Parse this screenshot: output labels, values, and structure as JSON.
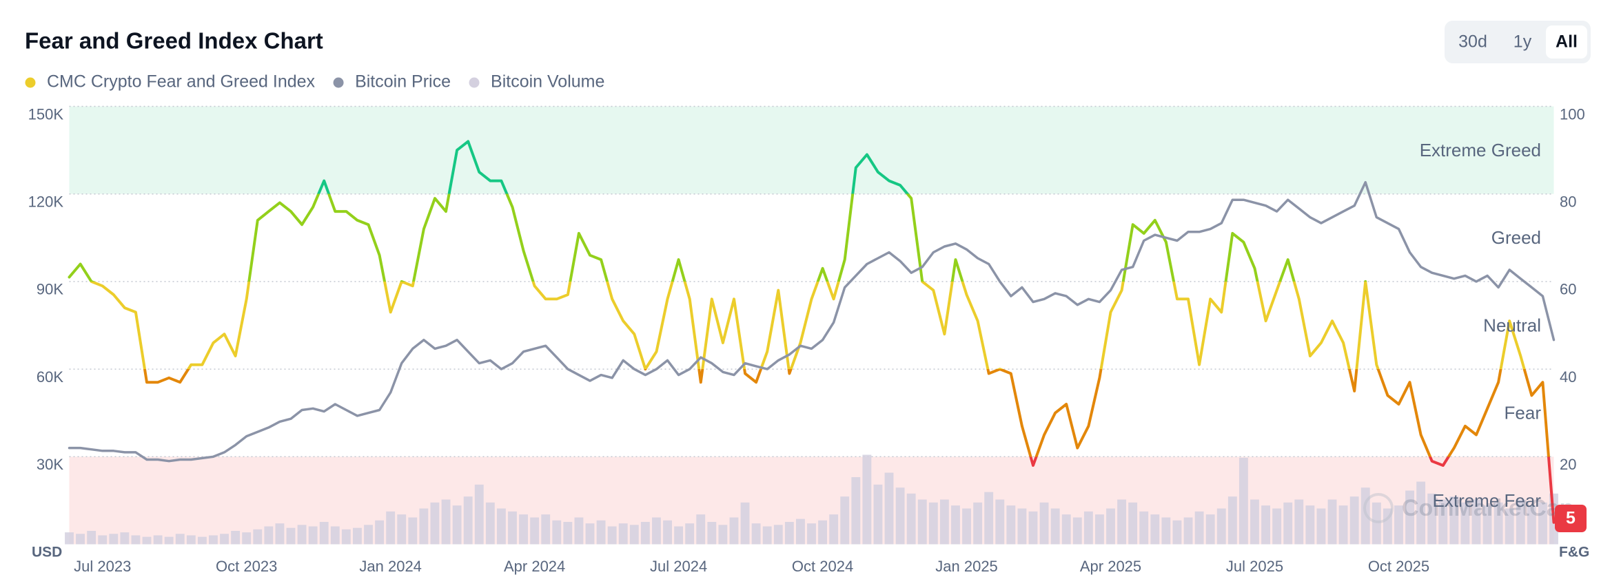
{
  "chart_data": {
    "type": "line",
    "title": "Fear and Greed Index Chart",
    "buttons": [
      "30d",
      "1y",
      "All"
    ],
    "selected": "All",
    "y_axis_label": "USD",
    "y2_axis_label": "F&G",
    "watermark": "CoinMarketCap",
    "categories": [
      null,
      null,
      null,
      "Jul 2023",
      null,
      null,
      null,
      null,
      null,
      null,
      null,
      null,
      null,
      null,
      null,
      null,
      "Oct 2023",
      null,
      null,
      null,
      null,
      null,
      null,
      null,
      null,
      null,
      null,
      null,
      null,
      "Jan 2024",
      null,
      null,
      null,
      null,
      null,
      null,
      null,
      null,
      null,
      null,
      null,
      null,
      "Apr 2024",
      null,
      null,
      null,
      null,
      null,
      null,
      null,
      null,
      null,
      null,
      null,
      null,
      "Jul 2024",
      null,
      null,
      null,
      null,
      null,
      null,
      null,
      null,
      null,
      null,
      null,
      null,
      "Oct 2024",
      null,
      null,
      null,
      null,
      null,
      null,
      null,
      null,
      null,
      null,
      null,
      null,
      "Jan 2025",
      null,
      null,
      null,
      null,
      null,
      null,
      null,
      null,
      null,
      null,
      null,
      null,
      "Apr 2025",
      null,
      null,
      null,
      null,
      null,
      null,
      null,
      null,
      null,
      null,
      null,
      null,
      "Jul 2025",
      null,
      null,
      null,
      null,
      null,
      null,
      null,
      null,
      null,
      null,
      null,
      null,
      "Oct 2025",
      null,
      null,
      null,
      null,
      null,
      null,
      null,
      null,
      null,
      null,
      null,
      null,
      null,
      null
    ],
    "series": [
      {
        "name": "CMC Crypto Fear and Greed Index",
        "color": "#eccd2b",
        "axis": "y2",
        "values": [
          61,
          64,
          60,
          59,
          57,
          54,
          53,
          37,
          37,
          38,
          37,
          41,
          41,
          46,
          48,
          43,
          56,
          74,
          76,
          78,
          76,
          73,
          77,
          83,
          76,
          76,
          74,
          73,
          66,
          53,
          60,
          59,
          72,
          79,
          76,
          90,
          92,
          85,
          83,
          83,
          77,
          67,
          59,
          56,
          56,
          57,
          71,
          66,
          65,
          56,
          51,
          48,
          40,
          44,
          56,
          65,
          56,
          37,
          56,
          46,
          56,
          39,
          37,
          44,
          58,
          39,
          46,
          56,
          63,
          56,
          65,
          86,
          89,
          85,
          83,
          82,
          79,
          60,
          58,
          48,
          65,
          57,
          51,
          39,
          40,
          39,
          27,
          18,
          25,
          30,
          32,
          22,
          27,
          38,
          53,
          58,
          73,
          71,
          74,
          69,
          56,
          56,
          41,
          56,
          53,
          71,
          69,
          63,
          51,
          58,
          65,
          56,
          43,
          46,
          51,
          46,
          35,
          60,
          41,
          34,
          32,
          37,
          25,
          19,
          18,
          22,
          27,
          25,
          31,
          37,
          51,
          43,
          34,
          37,
          5
        ]
      },
      {
        "name": "Bitcoin Price",
        "color": "#8b93a7",
        "values": [
          33000,
          33000,
          32500,
          32000,
          32000,
          31500,
          31500,
          29000,
          29000,
          28500,
          29000,
          29000,
          29500,
          30000,
          31500,
          34000,
          37000,
          38500,
          40000,
          42000,
          43000,
          46000,
          46500,
          45500,
          48000,
          46000,
          44000,
          45000,
          46000,
          52000,
          62000,
          67000,
          70000,
          67000,
          68000,
          70000,
          66000,
          62000,
          63000,
          60000,
          62000,
          66000,
          67000,
          68000,
          64000,
          60000,
          58000,
          56000,
          58000,
          57000,
          63000,
          60000,
          58000,
          60000,
          63000,
          58000,
          60000,
          64000,
          62000,
          59000,
          58000,
          62000,
          61000,
          60000,
          63000,
          65000,
          68000,
          67000,
          70000,
          76000,
          88000,
          92000,
          96000,
          98000,
          100000,
          97000,
          93000,
          95000,
          100000,
          102000,
          103000,
          101000,
          98000,
          96000,
          90000,
          85000,
          88000,
          83000,
          84000,
          86000,
          85000,
          82000,
          84000,
          83000,
          87000,
          94000,
          95000,
          104000,
          106000,
          105000,
          104000,
          107000,
          107000,
          108000,
          110000,
          118000,
          118000,
          117000,
          116000,
          114000,
          118000,
          115000,
          112000,
          110000,
          112000,
          114000,
          116000,
          124000,
          112000,
          110000,
          108000,
          100000,
          95000,
          93000,
          92000,
          91000,
          92000,
          90000,
          92000,
          88000,
          94000,
          91000,
          88000,
          85000,
          70000
        ]
      },
      {
        "name": "Bitcoin Volume",
        "color": "#d4d0df",
        "values": [
          8,
          7,
          9,
          6,
          7,
          8,
          6,
          5,
          6,
          5,
          7,
          6,
          5,
          6,
          7,
          9,
          8,
          10,
          12,
          14,
          11,
          13,
          12,
          15,
          12,
          10,
          11,
          13,
          16,
          22,
          20,
          18,
          24,
          28,
          30,
          26,
          32,
          40,
          28,
          24,
          22,
          20,
          18,
          20,
          16,
          15,
          18,
          14,
          16,
          12,
          14,
          13,
          15,
          18,
          16,
          12,
          14,
          20,
          15,
          13,
          18,
          28,
          14,
          12,
          13,
          15,
          17,
          14,
          16,
          20,
          32,
          45,
          60,
          40,
          48,
          38,
          34,
          30,
          28,
          30,
          26,
          24,
          28,
          35,
          30,
          26,
          24,
          22,
          28,
          24,
          20,
          18,
          22,
          20,
          24,
          30,
          28,
          22,
          20,
          18,
          16,
          18,
          22,
          20,
          24,
          32,
          58,
          30,
          26,
          24,
          28,
          30,
          26,
          24,
          30,
          26,
          32,
          38,
          28,
          24,
          26,
          36,
          42,
          34,
          30,
          32,
          28,
          30,
          26,
          28,
          24,
          30,
          26,
          28,
          34
        ]
      }
    ],
    "ylim": [
      0,
      150000
    ],
    "yticks": [
      {
        "value": 30000,
        "label": "30K"
      },
      {
        "value": 60000,
        "label": "60K"
      },
      {
        "value": 90000,
        "label": "90K"
      },
      {
        "value": 120000,
        "label": "120K"
      },
      {
        "value": 150000,
        "label": "150K"
      }
    ],
    "y2lim": [
      0,
      100
    ],
    "y2ticks": [
      20,
      40,
      60,
      80,
      100
    ],
    "zones": [
      {
        "name": "Extreme Fear",
        "from": 0,
        "to": 20,
        "color": "#ea3943",
        "fill": "#fde8e8"
      },
      {
        "name": "Fear",
        "from": 20,
        "to": 40,
        "color": "#e3870a"
      },
      {
        "name": "Neutral",
        "from": 40,
        "to": 60,
        "color": "#eccd2b"
      },
      {
        "name": "Greed",
        "from": 60,
        "to": 80,
        "color": "#93d01b"
      },
      {
        "name": "Extreme Greed",
        "from": 80,
        "to": 100,
        "color": "#16c784",
        "fill": "#e6f8f0"
      }
    ],
    "grid": true
  }
}
